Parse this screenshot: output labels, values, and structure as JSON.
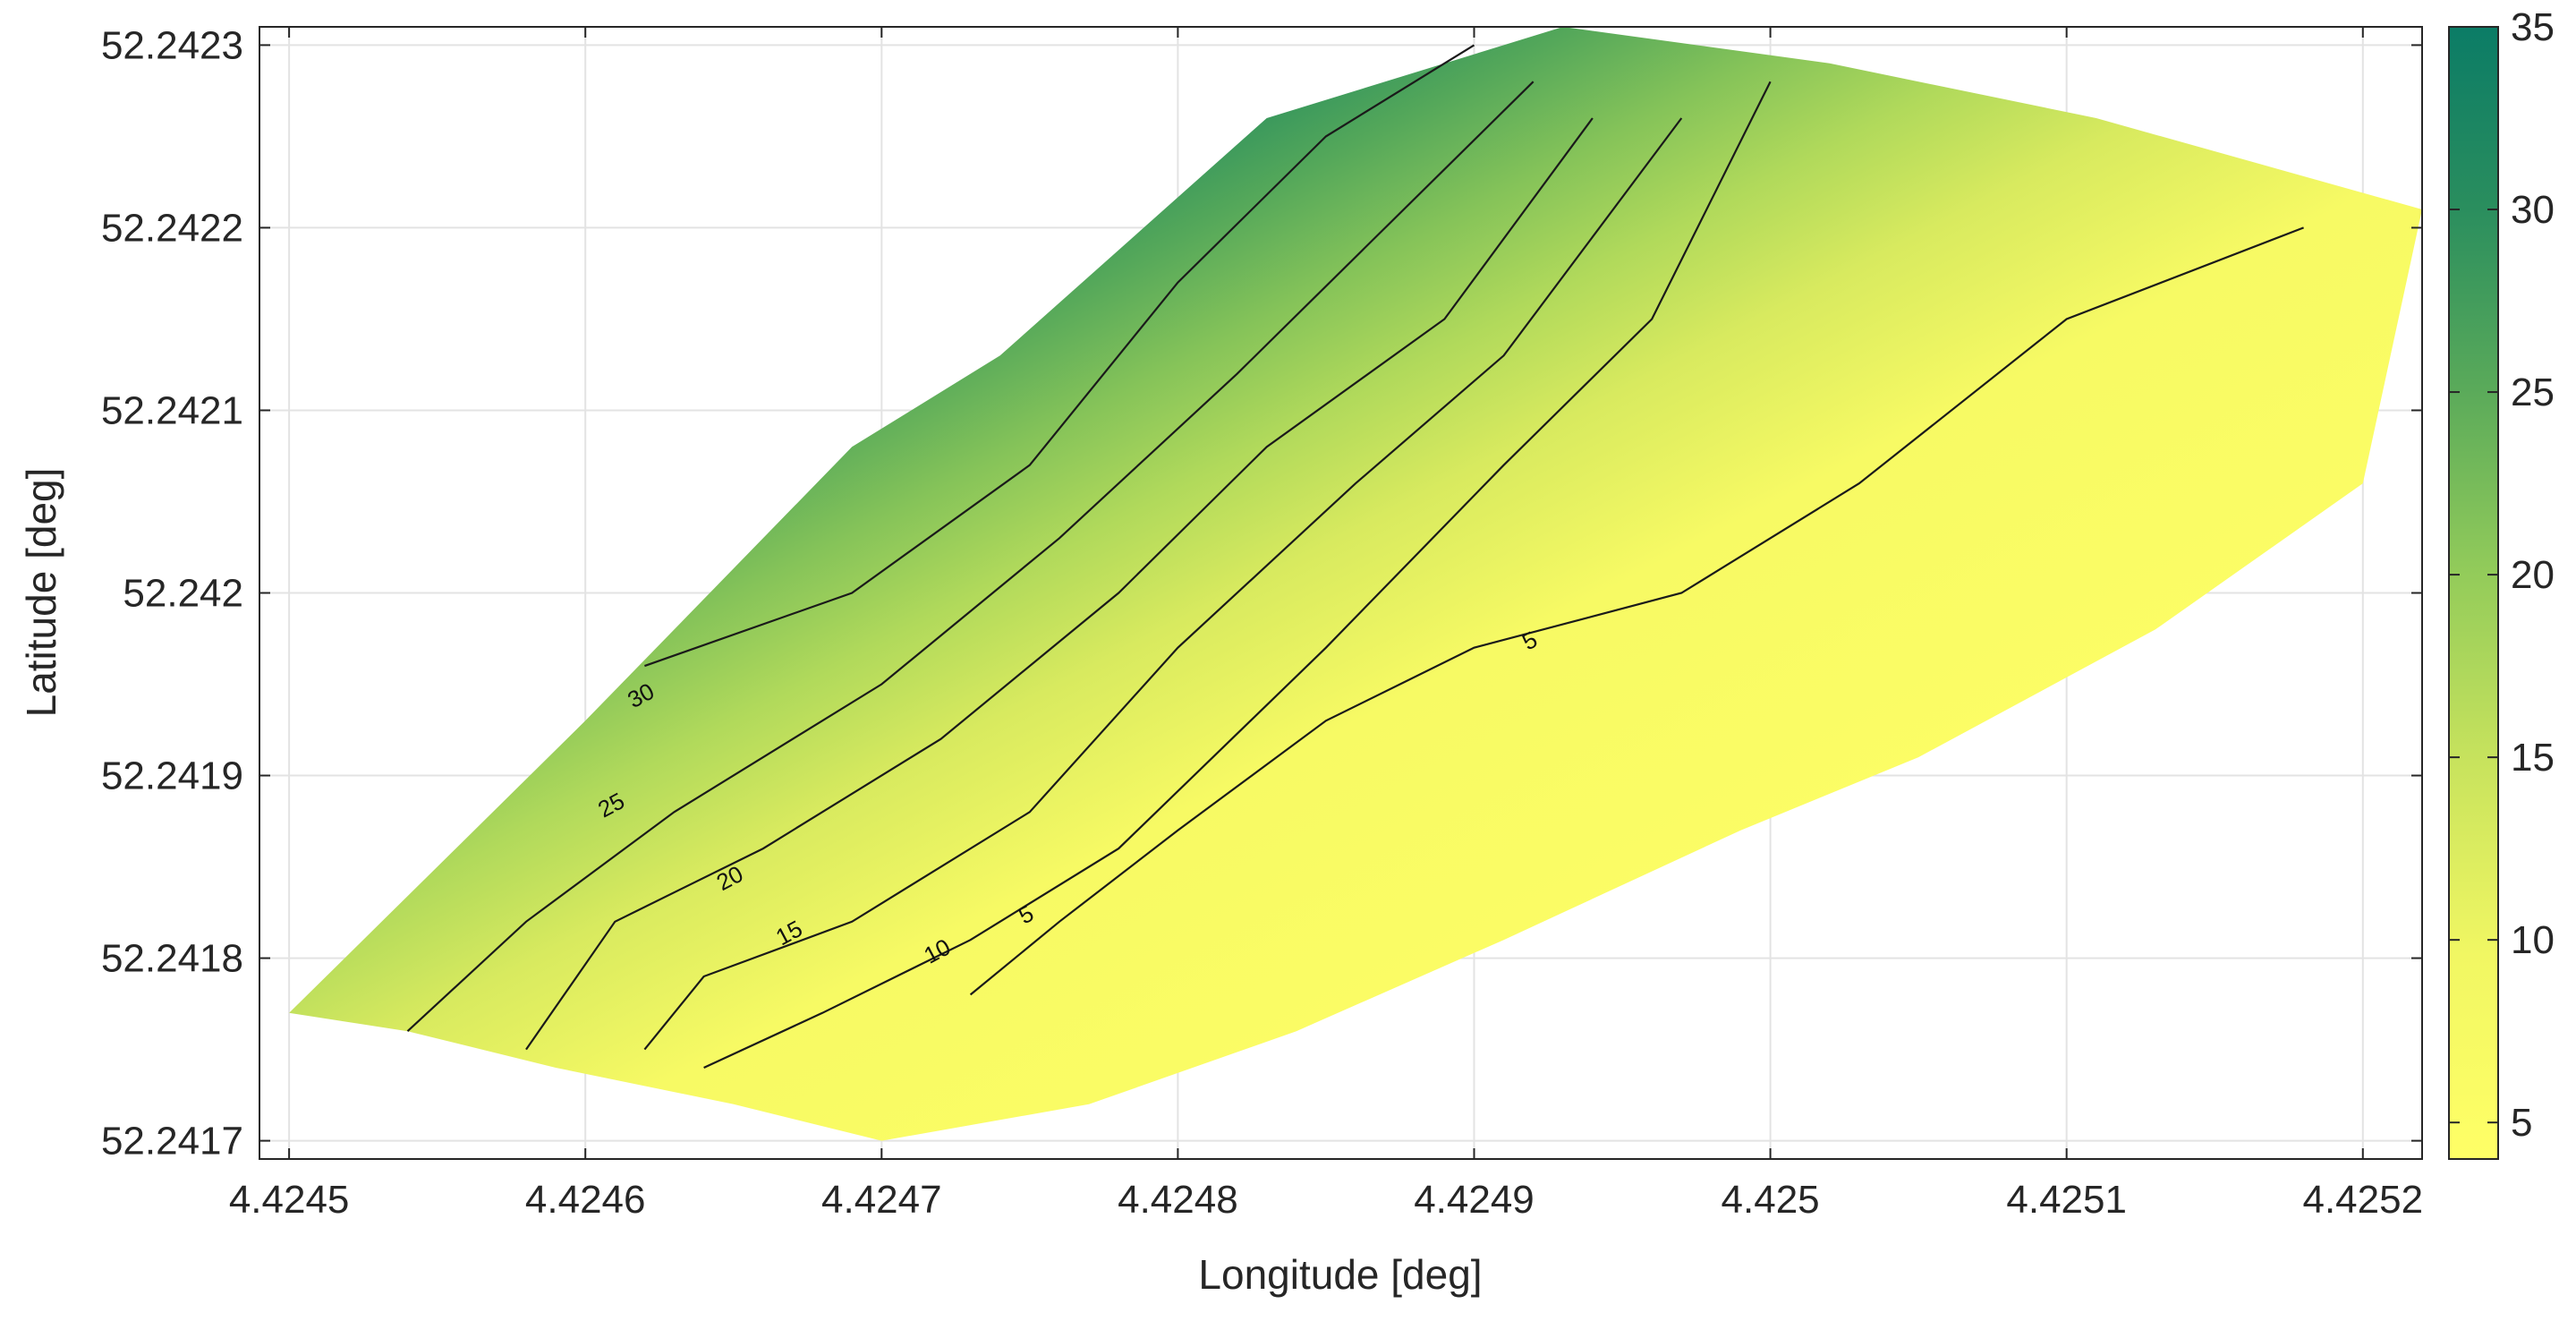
{
  "chart_data": {
    "type": "contour",
    "xlabel": "Longitude [deg]",
    "ylabel": "Latitude [deg]",
    "xlim": [
      4.42449,
      4.42522
    ],
    "ylim": [
      52.24169,
      52.24231
    ],
    "xticks": [
      4.4245,
      4.4246,
      4.4247,
      4.4248,
      4.4249,
      4.425,
      4.4251,
      4.4252
    ],
    "xtick_labels": [
      "4.4245",
      "4.4246",
      "4.4247",
      "4.4248",
      "4.4249",
      "4.425",
      "4.4251",
      "4.4252"
    ],
    "yticks": [
      52.2417,
      52.2418,
      52.2419,
      52.242,
      52.2421,
      52.2422,
      52.2423
    ],
    "ytick_labels": [
      "52.2417",
      "52.2418",
      "52.2419",
      "52.242",
      "52.2421",
      "52.2422",
      "52.2423"
    ],
    "grid": true,
    "colorbar": {
      "range": [
        4,
        35
      ],
      "ticks": [
        5,
        10,
        15,
        20,
        25,
        30,
        35
      ],
      "tick_labels": [
        "5",
        "10",
        "15",
        "20",
        "25",
        "30",
        "35"
      ],
      "colors": [
        "#ffff66",
        "#f1f763",
        "#d6ea5f",
        "#b5dc5c",
        "#92cb5a",
        "#6db55a",
        "#49a158",
        "#228a5f",
        "#0b7c66"
      ]
    },
    "contour_levels": [
      5,
      10,
      15,
      20,
      25,
      30,
      35
    ],
    "boundary": [
      [
        4.4245,
        52.24177
      ],
      [
        4.42454,
        52.24176
      ],
      [
        4.42459,
        52.24174
      ],
      [
        4.42465,
        52.24172
      ],
      [
        4.4247,
        52.2417
      ],
      [
        4.42477,
        52.24172
      ],
      [
        4.42484,
        52.24176
      ],
      [
        4.42491,
        52.24181
      ],
      [
        4.42499,
        52.24187
      ],
      [
        4.42505,
        52.24191
      ],
      [
        4.42513,
        52.24198
      ],
      [
        4.4252,
        52.24206
      ],
      [
        4.42522,
        52.24221
      ],
      [
        4.42511,
        52.24226
      ],
      [
        4.42502,
        52.24229
      ],
      [
        4.42493,
        52.24231
      ],
      [
        4.42483,
        52.24226
      ],
      [
        4.42474,
        52.24213
      ],
      [
        4.42469,
        52.24208
      ],
      [
        4.4246,
        52.24193
      ]
    ],
    "contours": [
      {
        "level": 30,
        "points": [
          [
            4.42462,
            52.24196
          ],
          [
            4.42469,
            52.242
          ],
          [
            4.42475,
            52.24207
          ],
          [
            4.4248,
            52.24217
          ],
          [
            4.42485,
            52.24225
          ],
          [
            4.4249,
            52.2423
          ]
        ],
        "labels": [
          [
            4.42462,
            52.24194
          ]
        ]
      },
      {
        "level": 25,
        "points": [
          [
            4.42454,
            52.24176
          ],
          [
            4.42458,
            52.24182
          ],
          [
            4.42463,
            52.24188
          ],
          [
            4.4247,
            52.24195
          ],
          [
            4.42476,
            52.24203
          ],
          [
            4.42482,
            52.24212
          ],
          [
            4.42487,
            52.2422
          ],
          [
            4.42492,
            52.24228
          ]
        ],
        "labels": [
          [
            4.42461,
            52.24188
          ]
        ]
      },
      {
        "level": 20,
        "points": [
          [
            4.42458,
            52.24175
          ],
          [
            4.42461,
            52.24182
          ],
          [
            4.42466,
            52.24186
          ],
          [
            4.42472,
            52.24192
          ],
          [
            4.42478,
            52.242
          ],
          [
            4.42483,
            52.24208
          ],
          [
            4.42489,
            52.24215
          ],
          [
            4.42494,
            52.24226
          ]
        ],
        "labels": [
          [
            4.42465,
            52.24184
          ]
        ]
      },
      {
        "level": 15,
        "points": [
          [
            4.42462,
            52.24175
          ],
          [
            4.42464,
            52.24179
          ],
          [
            4.42469,
            52.24182
          ],
          [
            4.42475,
            52.24188
          ],
          [
            4.4248,
            52.24197
          ],
          [
            4.42486,
            52.24206
          ],
          [
            4.42491,
            52.24213
          ],
          [
            4.42497,
            52.24226
          ]
        ],
        "labels": [
          [
            4.42467,
            52.24181
          ]
        ]
      },
      {
        "level": 10,
        "points": [
          [
            4.42464,
            52.24174
          ],
          [
            4.42468,
            52.24177
          ],
          [
            4.42473,
            52.24181
          ],
          [
            4.42478,
            52.24186
          ],
          [
            4.42485,
            52.24197
          ],
          [
            4.42491,
            52.24207
          ],
          [
            4.42496,
            52.24215
          ],
          [
            4.425,
            52.24228
          ]
        ],
        "labels": [
          [
            4.42472,
            52.2418
          ]
        ]
      },
      {
        "level": 5,
        "points": [
          [
            4.42473,
            52.24178
          ],
          [
            4.42476,
            52.24182
          ],
          [
            4.4248,
            52.24187
          ],
          [
            4.42485,
            52.24193
          ],
          [
            4.4249,
            52.24197
          ],
          [
            4.42497,
            52.242
          ],
          [
            4.42503,
            52.24206
          ],
          [
            4.4251,
            52.24215
          ],
          [
            4.42518,
            52.2422
          ]
        ],
        "labels": [
          [
            4.42475,
            52.24182
          ],
          [
            4.42492,
            52.24197
          ]
        ]
      }
    ]
  }
}
